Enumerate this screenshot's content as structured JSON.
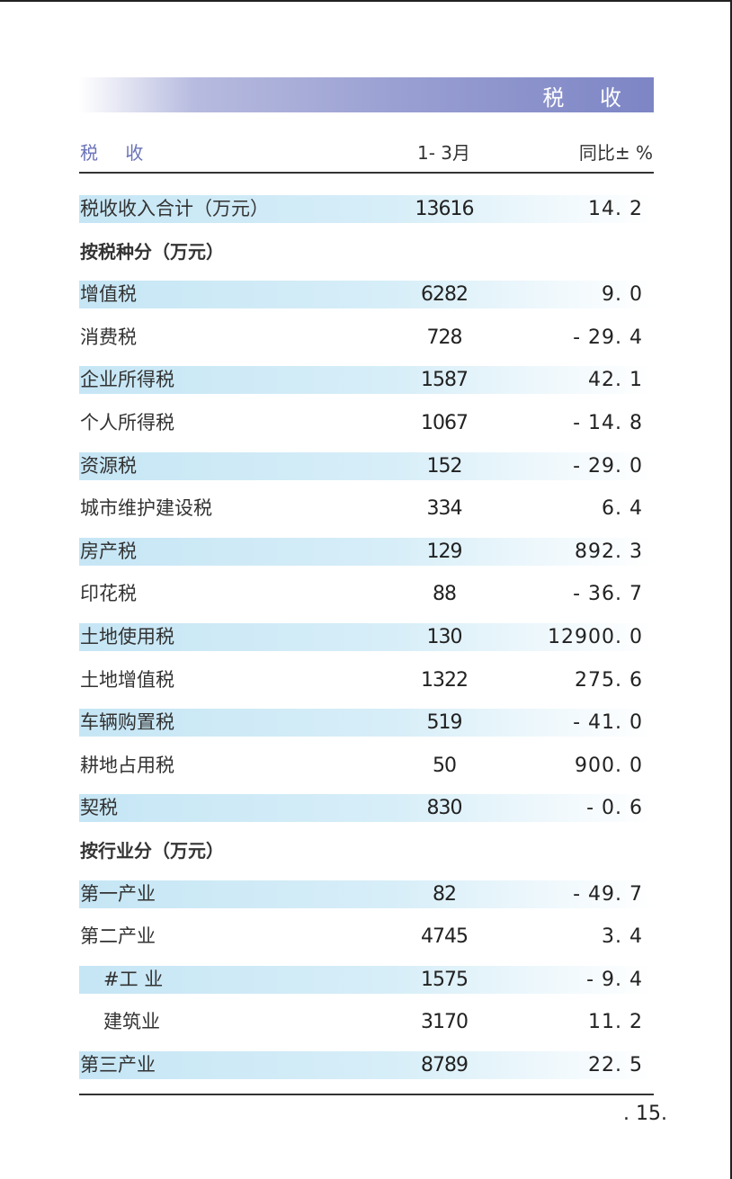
{
  "banner": {
    "title": "税 收"
  },
  "header": {
    "label": "税 收",
    "period": "1- 3月",
    "yoy": "同比± %"
  },
  "rows": [
    {
      "label": "税收收入合计（万元）",
      "value": "13616",
      "yoy": "14. 2",
      "shaded": true,
      "style": "normal"
    },
    {
      "label": "按税种分（万元）",
      "value": "",
      "yoy": "",
      "shaded": false,
      "style": "section"
    },
    {
      "label": "增值税",
      "value": "6282",
      "yoy": "9. 0",
      "shaded": true,
      "style": "normal"
    },
    {
      "label": "消费税",
      "value": "728",
      "yoy": "- 29. 4",
      "shaded": false,
      "style": "normal"
    },
    {
      "label": "企业所得税",
      "value": "1587",
      "yoy": "42. 1",
      "shaded": true,
      "style": "normal"
    },
    {
      "label": "个人所得税",
      "value": "1067",
      "yoy": "- 14. 8",
      "shaded": false,
      "style": "normal"
    },
    {
      "label": "资源税",
      "value": "152",
      "yoy": "- 29. 0",
      "shaded": true,
      "style": "normal"
    },
    {
      "label": "城市维护建设税",
      "value": "334",
      "yoy": "6. 4",
      "shaded": false,
      "style": "normal"
    },
    {
      "label": "房产税",
      "value": "129",
      "yoy": "892. 3",
      "shaded": true,
      "style": "normal"
    },
    {
      "label": "印花税",
      "value": "88",
      "yoy": "- 36. 7",
      "shaded": false,
      "style": "normal"
    },
    {
      "label": "土地使用税",
      "value": "130",
      "yoy": "12900. 0",
      "shaded": true,
      "style": "normal"
    },
    {
      "label": "土地增值税",
      "value": "1322",
      "yoy": "275. 6",
      "shaded": false,
      "style": "normal"
    },
    {
      "label": "车辆购置税",
      "value": "519",
      "yoy": "- 41. 0",
      "shaded": true,
      "style": "normal"
    },
    {
      "label": "耕地占用税",
      "value": "50",
      "yoy": "900. 0",
      "shaded": false,
      "style": "normal"
    },
    {
      "label": "契税",
      "value": "830",
      "yoy": "- 0. 6",
      "shaded": true,
      "style": "normal"
    },
    {
      "label": "按行业分（万元）",
      "value": "",
      "yoy": "",
      "shaded": false,
      "style": "section"
    },
    {
      "label": "第一产业",
      "value": "82",
      "yoy": "- 49. 7",
      "shaded": true,
      "style": "normal"
    },
    {
      "label": "第二产业",
      "value": "4745",
      "yoy": "3. 4",
      "shaded": false,
      "style": "normal"
    },
    {
      "label": "#工 业",
      "value": "1575",
      "yoy": "- 9. 4",
      "shaded": true,
      "style": "indent"
    },
    {
      "label": "建筑业",
      "value": "3170",
      "yoy": "11. 2",
      "shaded": false,
      "style": "indent"
    },
    {
      "label": "第三产业",
      "value": "8789",
      "yoy": "22. 5",
      "shaded": true,
      "style": "normal"
    }
  ],
  "footer": {
    "page_number": ". 15."
  }
}
